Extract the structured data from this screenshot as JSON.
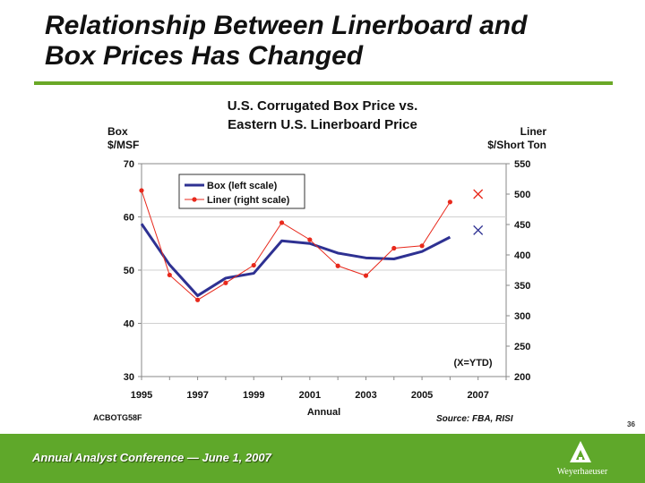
{
  "slide": {
    "title_line1": "Relationship Between Linerboard and",
    "title_line2": "Box Prices Has Changed",
    "code": "ACBOTG58F",
    "source": "Source: FBA, RISI",
    "page_number": "36",
    "footer_text": "Annual Analyst Conference — June 1, 2007",
    "logo_text": "Weyerhaeuser",
    "colors": {
      "accent_green": "#6aa827",
      "footer_green": "#5fa82a",
      "box_series": "#2e3192",
      "liner_series": "#e8291c"
    }
  },
  "chart_data": {
    "type": "line",
    "title_line1": "U.S. Corrugated Box Price vs.",
    "title_line2": "Eastern U.S. Linerboard Price",
    "xlabel": "Annual",
    "left_axis_title_line1": "Box",
    "left_axis_title_line2": "$/MSF",
    "right_axis_title_line1": "Liner",
    "right_axis_title_line2": "$/Short Ton",
    "xlim": [
      1995,
      2008
    ],
    "x_ticks": [
      1995,
      1997,
      1999,
      2001,
      2003,
      2005,
      2007
    ],
    "y_left_lim": [
      30,
      70
    ],
    "y_left_ticks": [
      30,
      40,
      50,
      60,
      70
    ],
    "y_right_lim": [
      200,
      550
    ],
    "y_right_ticks": [
      200,
      250,
      300,
      350,
      400,
      450,
      500,
      550
    ],
    "grid": "horizontal",
    "legend_placement": "top-left",
    "series": [
      {
        "name": "Box (left scale)",
        "axis": "left",
        "x": [
          1995,
          1996,
          1997,
          1998,
          1999,
          2000,
          2001,
          2002,
          2003,
          2004,
          2005,
          2006
        ],
        "values": [
          58.7,
          51.0,
          45.2,
          48.5,
          49.4,
          55.5,
          55.0,
          53.2,
          52.3,
          52.1,
          53.5,
          56.2
        ]
      },
      {
        "name": "Liner (right scale)",
        "axis": "right",
        "x": [
          1995,
          1996,
          1997,
          1998,
          1999,
          2000,
          2001,
          2002,
          2003,
          2004,
          2005,
          2006
        ],
        "values": [
          506,
          367,
          326,
          354,
          383,
          453,
          425,
          382,
          366,
          411,
          415,
          487
        ]
      }
    ],
    "ytd_markers": [
      {
        "series": "Liner (right scale)",
        "x": 2007,
        "value": 500
      },
      {
        "series": "Box (left scale)",
        "x": 2007,
        "value": 57.5
      }
    ],
    "annotation": "(X=YTD)"
  }
}
